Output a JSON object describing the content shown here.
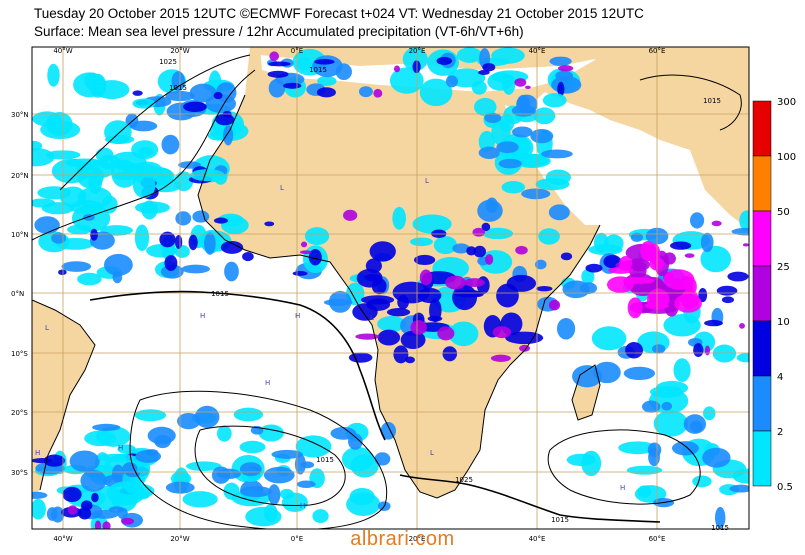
{
  "header": {
    "title_line1": "Tuesday 20 October 2015 12UTC ©ECMWF Forecast t+024 VT: Wednesday 21 October 2015 12UTC",
    "title_line2": "Surface: Mean sea level pressure / 12hr Accumulated precipitation (VT-6h/VT+6h)"
  },
  "map": {
    "lon_labels": [
      "40°W",
      "20°W",
      "0°E",
      "20°E",
      "40°E",
      "60°E"
    ],
    "lat_labels": [
      "30°N",
      "20°N",
      "10°N",
      "0°N",
      "10°S",
      "20°S",
      "30°S"
    ],
    "isobar_labels": [
      "1025",
      "1015",
      "1015",
      "1015",
      "1015",
      "1025",
      "1015",
      "1015",
      "1015"
    ],
    "colors": {
      "land": "#f5d6a0",
      "sea": "#ffffff",
      "grid": "#c8a060",
      "coast": "#000000",
      "isobar": "#000000"
    }
  },
  "legend": {
    "labels": [
      "300",
      "100",
      "50",
      "25",
      "10",
      "4",
      "2",
      "0.5"
    ],
    "colors": [
      "#e60000",
      "#ff8000",
      "#ff00ff",
      "#b000e0",
      "#0000e0",
      "#1a8cff",
      "#00e6ff"
    ]
  },
  "watermark": "albrari.com"
}
